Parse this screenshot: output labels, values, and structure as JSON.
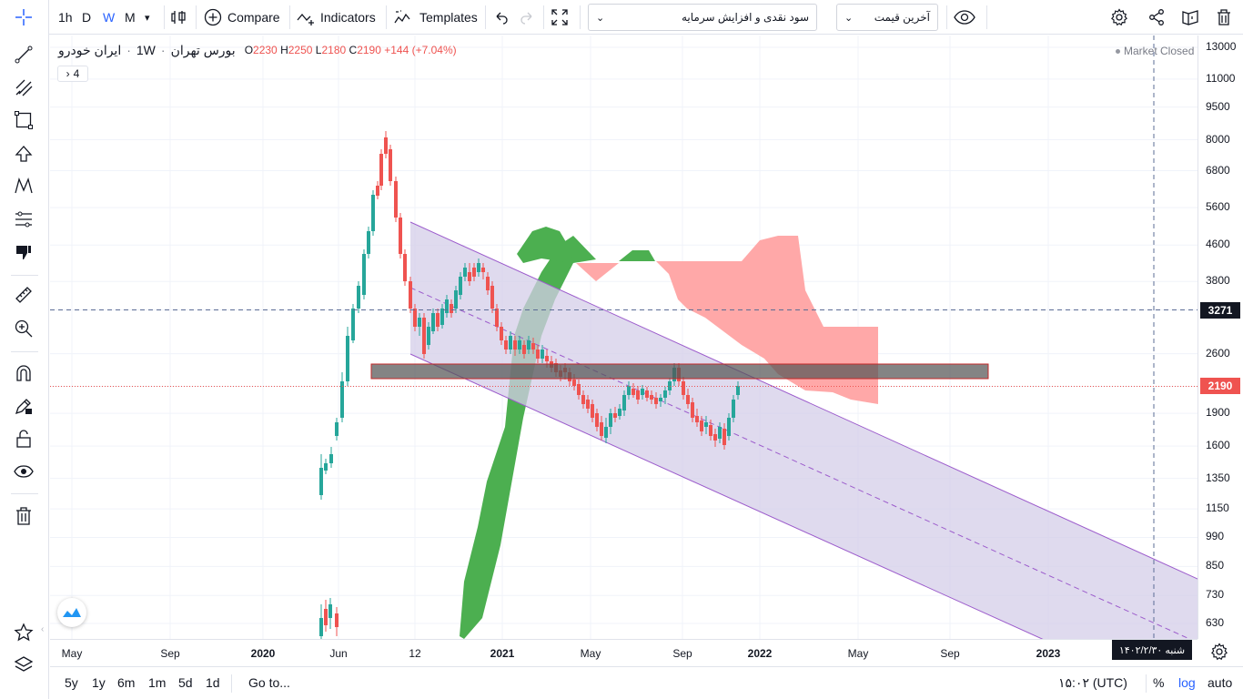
{
  "toolbar": {
    "intervals": [
      "1h",
      "D",
      "W",
      "M"
    ],
    "active_interval": "W",
    "compare_label": "Compare",
    "indicators_label": "Indicators",
    "templates_label": "Templates",
    "study_dropdown_value": "سود نقدی و افزایش سرمایه",
    "price_type_value": "آخرین قیمت"
  },
  "legend": {
    "symbol": "ایران خودرو",
    "interval": "1W",
    "exchange": "بورس تهران",
    "open_label": "O",
    "open": "2230",
    "high_label": "H",
    "high": "2250",
    "low_label": "L",
    "low": "2180",
    "close_label": "C",
    "close": "2190",
    "change": "+144 (+7.04%)",
    "collapsed_count": "4"
  },
  "market_status": "Market Closed",
  "price_axis": {
    "labels": [
      "13000",
      "11000",
      "9500",
      "8000",
      "6800",
      "5600",
      "4600",
      "3800",
      "3271",
      "2600",
      "2190",
      "1900",
      "1600",
      "1350",
      "1150",
      "990",
      "850",
      "730",
      "630"
    ],
    "current_price": "2190",
    "crosshair_price": "3271"
  },
  "time_axis": {
    "labels": [
      "May",
      "Sep",
      "2020",
      "Jun",
      "12",
      "2021",
      "May",
      "Sep",
      "2022",
      "May",
      "Sep",
      "2023"
    ],
    "crosshair_date": "شنبه ۱۴۰۲/۲/۳۰"
  },
  "bottombar": {
    "ranges": [
      "5y",
      "1y",
      "6m",
      "1m",
      "5d",
      "1d"
    ],
    "goto_label": "Go to...",
    "clock": "۱۵:۰۲ (UTC)",
    "percent_label": "%",
    "log_label": "log",
    "auto_label": "auto"
  },
  "colors": {
    "up": "#26a69a",
    "down": "#ef5350",
    "channel_fill": "#d4cde8",
    "channel_line": "#9c5ccc",
    "cloud_bull": "#4caf50",
    "cloud_bear": "#ffa8a8",
    "accent": "#2962ff"
  },
  "icons": [
    "crosshair-icon",
    "trend-line-icon",
    "pitchfork-icon",
    "rectangle-icon",
    "arrow-up-icon",
    "pattern-icon",
    "fib-icon",
    "thumbs-down-icon",
    "ruler-icon",
    "zoom-in-icon",
    "magnet-icon",
    "lock-draw-icon",
    "unlock-icon",
    "eye-icon",
    "trash-icon",
    "star-icon",
    "layers-icon",
    "settings-icon",
    "share-icon",
    "snapshot-icon",
    "delete-icon",
    "fullscreen-icon",
    "undo-icon",
    "redo-icon",
    "bar-style-icon"
  ]
}
